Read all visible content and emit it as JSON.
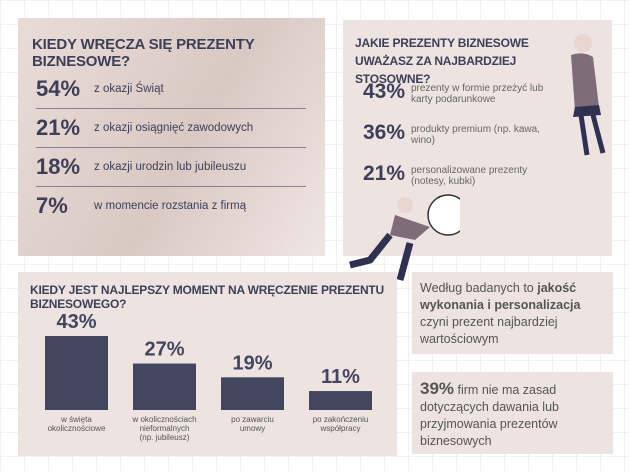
{
  "when_given": {
    "title": "KIEDY WRĘCZA SIĘ PREZENTY BIZNESOWE?",
    "items": [
      {
        "percent": "54%",
        "label": "z okazji Świąt"
      },
      {
        "percent": "21%",
        "label": "z okazji osiągnięć zawodowych"
      },
      {
        "percent": "18%",
        "label": "z okazji urodzin lub jubileuszu"
      },
      {
        "percent": "7%",
        "label": "w momencie rozstania z firmą"
      }
    ]
  },
  "appropriate": {
    "title": "JAKIE PREZENTY BIZNESOWE UWAŻASZ ZA NAJBARDZIEJ STOSOWNE?",
    "items": [
      {
        "percent": "43%",
        "label": "prezenty w formie przeżyć lub karty podarunkowe"
      },
      {
        "percent": "36%",
        "label": "produkty premium (np. kawa, wino)"
      },
      {
        "percent": "21%",
        "label": "personalizowane prezenty (notesy, kubki)"
      }
    ]
  },
  "best_moment": {
    "title": "KIEDY JEST NAJLEPSZY MOMENT NA WRĘCZENIE PREZENTU BIZNESOWEGO?",
    "categories": [
      [
        "w święta",
        "okolicznościowe"
      ],
      [
        "w okolicznościach",
        "nieformalnych",
        "(np. jubileusz)"
      ],
      [
        "po zawarciu",
        "umowy"
      ],
      [
        "po zakończeniu",
        "współpracy"
      ]
    ],
    "values": [
      43,
      27,
      19,
      11
    ],
    "value_labels": [
      "43%",
      "27%",
      "19%",
      "11%"
    ],
    "color": "#43465f",
    "ylim": [
      0,
      43
    ]
  },
  "quality_note": {
    "segments": [
      {
        "text": "Według badanych to ",
        "bold": false
      },
      {
        "text": "jakość wykonania i personalizacja",
        "bold": true
      },
      {
        "text": " czyni prezent najbardziej wartościowym",
        "bold": false
      }
    ]
  },
  "rules_note": {
    "percent": "39%",
    "text": "firm nie ma zasad dotyczących dawania lub przyjmowania prezentów biznesowych"
  }
}
